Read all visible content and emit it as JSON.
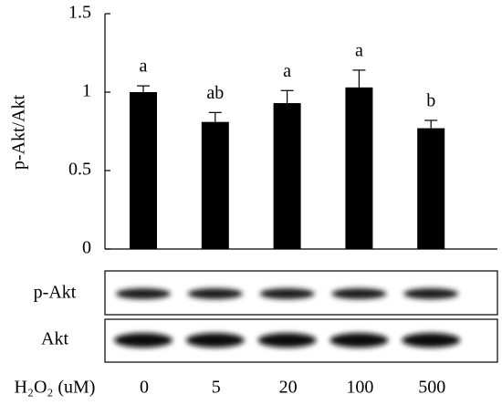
{
  "chart_data": {
    "type": "bar",
    "y_label": "p-Akt/Akt",
    "x_label": "H₂O₂ (uM)",
    "categories": [
      "0",
      "5",
      "20",
      "100",
      "500"
    ],
    "values": [
      1.0,
      0.81,
      0.93,
      1.03,
      0.77
    ],
    "errors": [
      0.04,
      0.06,
      0.08,
      0.11,
      0.05
    ],
    "annotations": [
      "a",
      "ab",
      "a",
      "a",
      "b"
    ],
    "color": "#000000",
    "ylim": [
      0,
      1.5
    ],
    "yticks": [
      0,
      0.5,
      1,
      1.5
    ],
    "blot_labels": [
      "p-Akt",
      "Akt"
    ]
  }
}
